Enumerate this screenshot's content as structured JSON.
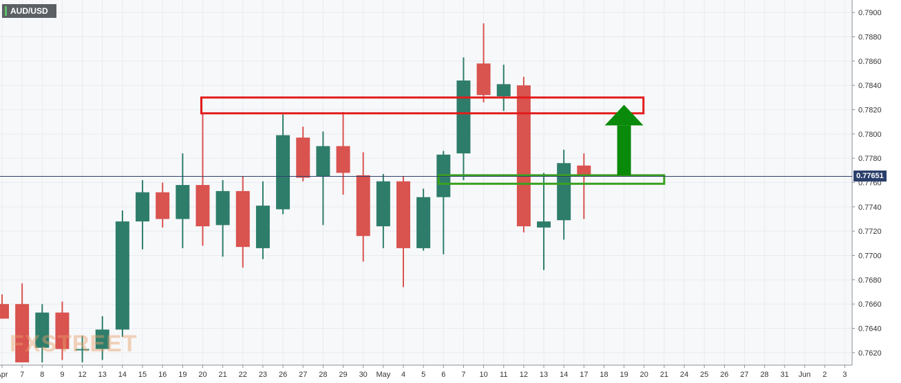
{
  "header": {
    "symbol": "AUD/USD"
  },
  "watermark": "FXSTREET",
  "colors": {
    "bull": "#2e7d6b",
    "bear": "#d9534f",
    "resistance_box": "#e31b1b",
    "support_box": "#3aa01e",
    "arrow": "#0a8a0a",
    "price_line": "#2a3f6b",
    "grid": "#e8ebf0"
  },
  "chart_data": {
    "type": "candlestick",
    "title": "AUD/USD",
    "ylim": [
      0.7612,
      0.7908
    ],
    "y_ticks": [
      "0.7620",
      "0.7640",
      "0.7660",
      "0.7680",
      "0.7700",
      "0.7720",
      "0.7740",
      "0.7760",
      "0.7780",
      "0.7800",
      "0.7820",
      "0.7840",
      "0.7860",
      "0.7880",
      "0.7900"
    ],
    "x_tick_labels": [
      "Apr",
      "7",
      "8",
      "9",
      "12",
      "13",
      "14",
      "15",
      "16",
      "19",
      "20",
      "21",
      "22",
      "23",
      "26",
      "27",
      "28",
      "29",
      "30",
      "May",
      "4",
      "5",
      "6",
      "7",
      "10",
      "11",
      "12",
      "13",
      "14",
      "17",
      "18",
      "19",
      "20",
      "21",
      "24",
      "25",
      "26",
      "27",
      "28",
      "31",
      "Jun",
      "2",
      "3"
    ],
    "current_price": "0.77651",
    "candles": [
      {
        "date": "Apr 6",
        "open": 0.766,
        "high": 0.7668,
        "low": 0.7648,
        "close": 0.7648
      },
      {
        "date": "Apr 7",
        "open": 0.766,
        "high": 0.7677,
        "low": 0.7612,
        "close": 0.7612
      },
      {
        "date": "Apr 8",
        "open": 0.7624,
        "high": 0.766,
        "low": 0.7612,
        "close": 0.7653
      },
      {
        "date": "Apr 9",
        "open": 0.7653,
        "high": 0.7662,
        "low": 0.7614,
        "close": 0.7623
      },
      {
        "date": "Apr 12",
        "open": 0.7623,
        "high": 0.7634,
        "low": 0.7612,
        "close": 0.7623
      },
      {
        "date": "Apr 13",
        "open": 0.7623,
        "high": 0.765,
        "low": 0.7614,
        "close": 0.7639
      },
      {
        "date": "Apr 14",
        "open": 0.7639,
        "high": 0.7737,
        "low": 0.7633,
        "close": 0.7728
      },
      {
        "date": "Apr 15",
        "open": 0.7728,
        "high": 0.7762,
        "low": 0.7705,
        "close": 0.7752
      },
      {
        "date": "Apr 16",
        "open": 0.7752,
        "high": 0.776,
        "low": 0.7723,
        "close": 0.773
      },
      {
        "date": "Apr 19",
        "open": 0.773,
        "high": 0.7784,
        "low": 0.7706,
        "close": 0.7758
      },
      {
        "date": "Apr 20",
        "open": 0.7758,
        "high": 0.7817,
        "low": 0.7708,
        "close": 0.7724
      },
      {
        "date": "Apr 21",
        "open": 0.7725,
        "high": 0.7762,
        "low": 0.7699,
        "close": 0.7753
      },
      {
        "date": "Apr 22",
        "open": 0.7753,
        "high": 0.7765,
        "low": 0.769,
        "close": 0.7707
      },
      {
        "date": "Apr 23",
        "open": 0.7706,
        "high": 0.7761,
        "low": 0.7697,
        "close": 0.7741
      },
      {
        "date": "Apr 26",
        "open": 0.7738,
        "high": 0.7816,
        "low": 0.7734,
        "close": 0.7799
      },
      {
        "date": "Apr 27",
        "open": 0.7797,
        "high": 0.7806,
        "low": 0.7761,
        "close": 0.7764
      },
      {
        "date": "Apr 28",
        "open": 0.7765,
        "high": 0.7802,
        "low": 0.7725,
        "close": 0.779
      },
      {
        "date": "Apr 29",
        "open": 0.779,
        "high": 0.7818,
        "low": 0.775,
        "close": 0.7768
      },
      {
        "date": "Apr 30",
        "open": 0.7766,
        "high": 0.7785,
        "low": 0.7695,
        "close": 0.7716
      },
      {
        "date": "May 3",
        "open": 0.7724,
        "high": 0.7767,
        "low": 0.7706,
        "close": 0.7761
      },
      {
        "date": "May 4",
        "open": 0.7761,
        "high": 0.7765,
        "low": 0.7674,
        "close": 0.7706
      },
      {
        "date": "May 5",
        "open": 0.7706,
        "high": 0.7755,
        "low": 0.7704,
        "close": 0.7748
      },
      {
        "date": "May 6",
        "open": 0.7748,
        "high": 0.7786,
        "low": 0.7701,
        "close": 0.7783
      },
      {
        "date": "May 7",
        "open": 0.7784,
        "high": 0.7863,
        "low": 0.7762,
        "close": 0.7844
      },
      {
        "date": "May 10",
        "open": 0.7858,
        "high": 0.7891,
        "low": 0.7826,
        "close": 0.7832
      },
      {
        "date": "May 11",
        "open": 0.7831,
        "high": 0.7857,
        "low": 0.7819,
        "close": 0.7841
      },
      {
        "date": "May 12",
        "open": 0.784,
        "high": 0.7847,
        "low": 0.7719,
        "close": 0.7724
      },
      {
        "date": "May 13",
        "open": 0.7723,
        "high": 0.7768,
        "low": 0.7688,
        "close": 0.7728
      },
      {
        "date": "May 14",
        "open": 0.7729,
        "high": 0.7787,
        "low": 0.7713,
        "close": 0.7776
      },
      {
        "date": "May 17",
        "open": 0.7774,
        "high": 0.7784,
        "low": 0.773,
        "close": 0.7765
      }
    ],
    "annotations": [
      {
        "type": "resistance-zone",
        "from_date": "Apr 20",
        "to_date": "May 20",
        "y_low": 0.7817,
        "y_high": 0.783
      },
      {
        "type": "support-zone",
        "from_date": "May 6",
        "to_date": "May 21",
        "y_low": 0.7759,
        "y_high": 0.7766
      },
      {
        "type": "arrow-up",
        "date": "May 19",
        "from": 0.7766,
        "to": 0.7824
      }
    ]
  }
}
